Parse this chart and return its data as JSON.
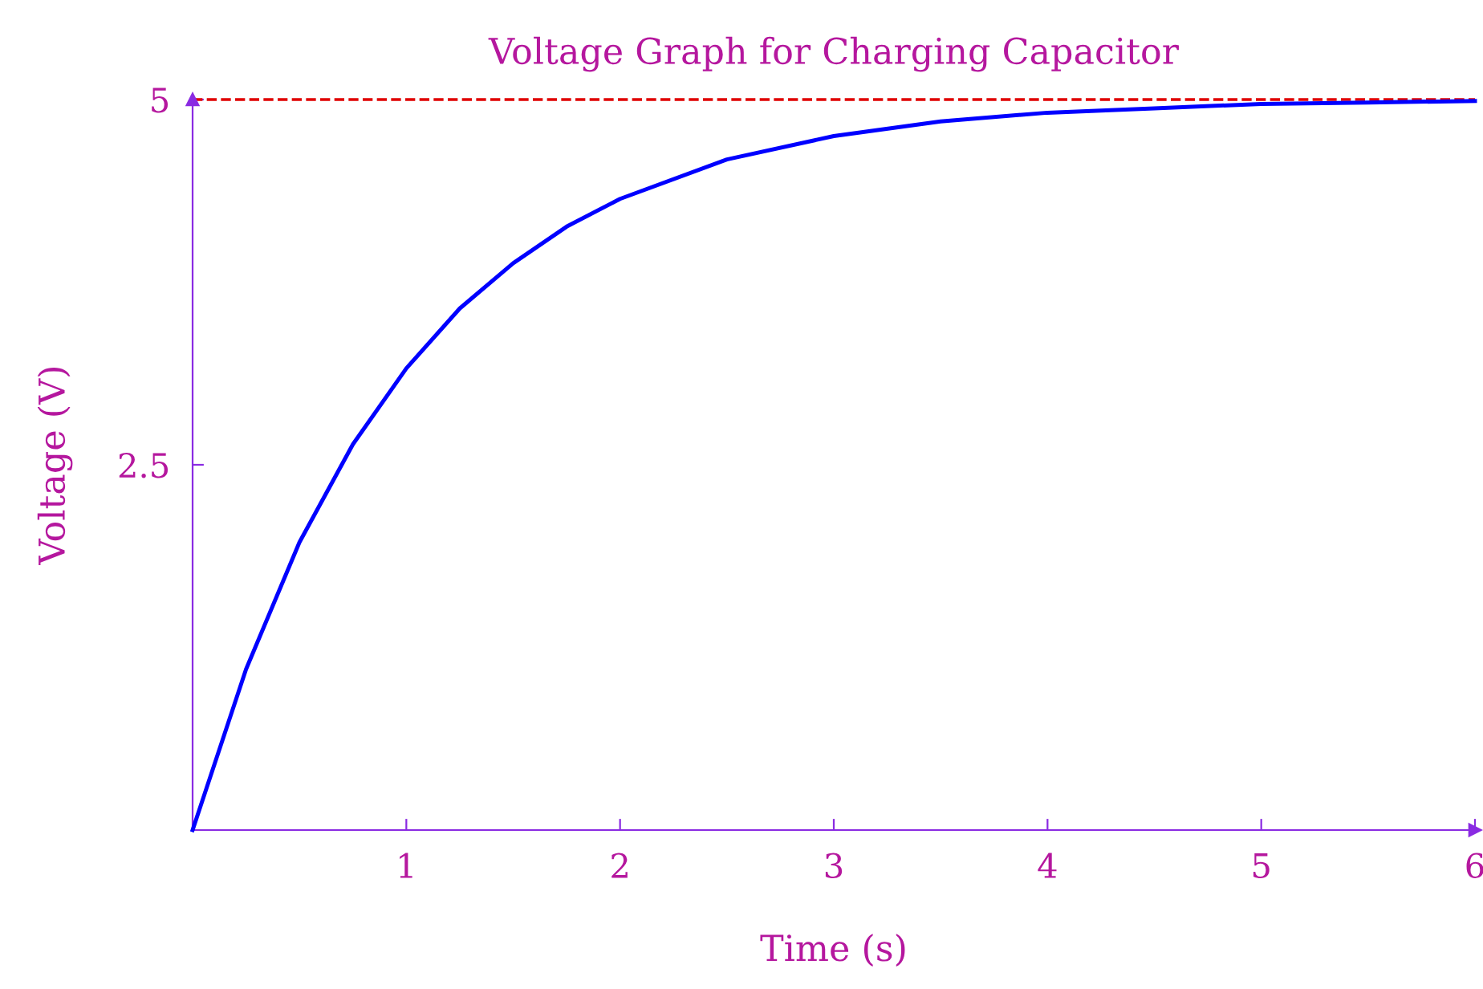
{
  "chart_data": {
    "type": "line",
    "title": "Voltage Graph for Charging Capacitor",
    "xlabel": "Time (s)",
    "ylabel": "Voltage (V)",
    "x": [
      0,
      0.25,
      0.5,
      0.75,
      1,
      1.25,
      1.5,
      1.75,
      2,
      2.5,
      3,
      3.5,
      4,
      4.5,
      5,
      5.5,
      6
    ],
    "series": [
      {
        "color": "#0000ff",
        "values": [
          0,
          1.1,
          1.97,
          2.64,
          3.16,
          3.57,
          3.88,
          4.13,
          4.32,
          4.59,
          4.75,
          4.85,
          4.91,
          4.94,
          4.97,
          4.98,
          4.99
        ]
      }
    ],
    "xlim": [
      0,
      6
    ],
    "xticks": [
      1,
      2,
      3,
      4,
      5,
      6
    ],
    "ylim": [
      0,
      5
    ],
    "yticks": [
      2.5,
      5
    ],
    "ref_lines": [
      {
        "axis": "y",
        "value": 5,
        "label": null,
        "color": "#e00000",
        "line_style": "dashed"
      }
    ],
    "grid": false,
    "legend": false,
    "marker": "none",
    "line_style": "solid"
  }
}
